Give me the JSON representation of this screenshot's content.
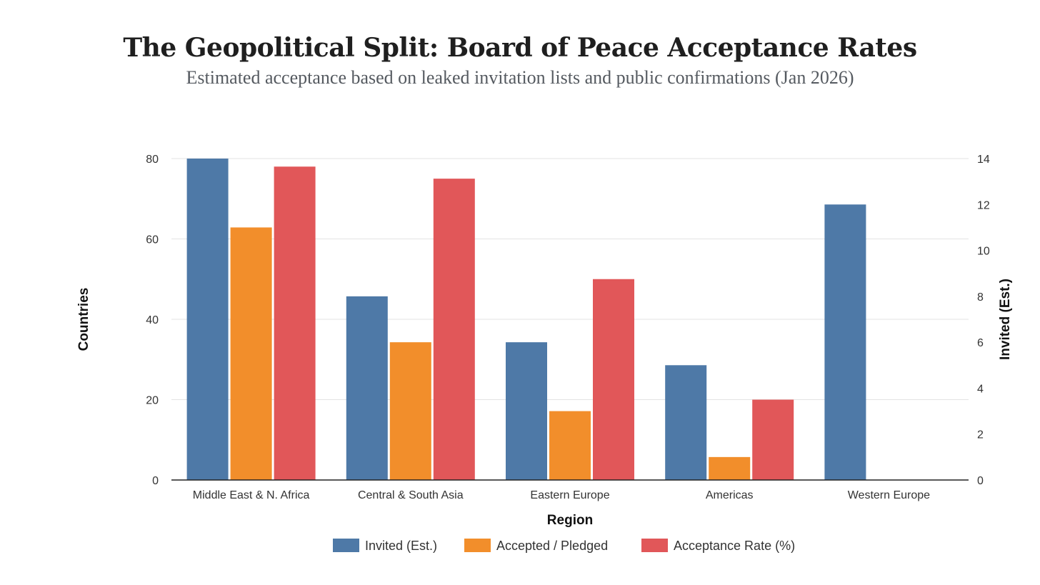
{
  "header": {
    "title": "The Geopolitical Split: Board of Peace Acceptance Rates",
    "subtitle": "Estimated acceptance based on leaked invitation lists and public confirmations (Jan 2026)"
  },
  "chart_data": {
    "type": "bar",
    "title": "The Geopolitical Split: Board of Peace Acceptance Rates",
    "subtitle": "Estimated acceptance based on leaked invitation lists and public confirmations (Jan 2026)",
    "xlabel": "Region",
    "ylabel": "Countries",
    "y2label": "Invited (Est.)",
    "categories": [
      "Middle East & N. Africa",
      "Central & South Asia",
      "Eastern Europe",
      "Americas",
      "Western Europe"
    ],
    "ylim": [
      0,
      80
    ],
    "y2lim": [
      0,
      14
    ],
    "yticks": [
      0,
      20,
      40,
      60,
      80
    ],
    "y2ticks": [
      0,
      2,
      4,
      6,
      8,
      10,
      12,
      14
    ],
    "grid": true,
    "legend_position": "bottom",
    "series": [
      {
        "name": "Invited (Est.)",
        "axis": "right",
        "color": "#4e79a7",
        "values": [
          14,
          8,
          6,
          5,
          12
        ]
      },
      {
        "name": "Accepted / Pledged",
        "axis": "right",
        "color": "#f28e2b",
        "values": [
          11,
          6,
          3,
          1,
          0
        ]
      },
      {
        "name": "Acceptance Rate (%)",
        "axis": "left",
        "color": "#e15759",
        "values": [
          78,
          75,
          50,
          20,
          0
        ]
      }
    ]
  }
}
